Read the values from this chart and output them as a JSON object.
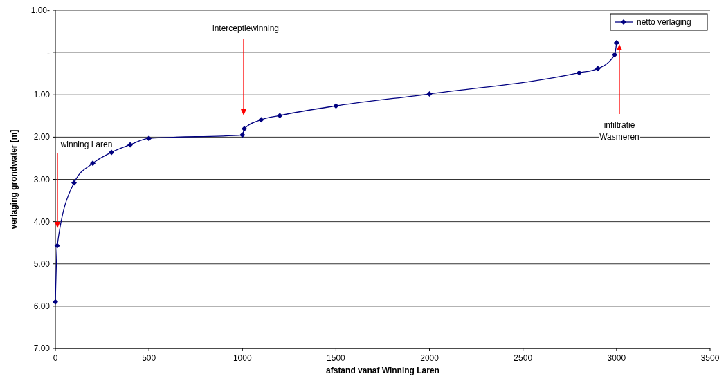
{
  "chart_data": {
    "type": "line",
    "xlabel": "afstand vanaf Winning Laren",
    "ylabel": "verlaging grondwater [m]",
    "xlim": [
      0,
      3500
    ],
    "xticks": [
      0,
      500,
      1000,
      1500,
      2000,
      2500,
      3000,
      3500
    ],
    "ylim": [
      7,
      -1
    ],
    "yticks": [
      {
        "value": -1,
        "label": "1.00-"
      },
      {
        "value": 0,
        "label": "-"
      },
      {
        "value": 1,
        "label": "1.00"
      },
      {
        "value": 2,
        "label": "2.00"
      },
      {
        "value": 3,
        "label": "3.00"
      },
      {
        "value": 4,
        "label": "4.00"
      },
      {
        "value": 5,
        "label": "5.00"
      },
      {
        "value": 6,
        "label": "6.00"
      },
      {
        "value": 7,
        "label": "7.00"
      }
    ],
    "grid": "y",
    "legend": "top right",
    "marker": "diamond",
    "line_style": "solid",
    "series": [
      {
        "name": "netto verlaging",
        "color": "#000080",
        "x": [
          0,
          10,
          100,
          200,
          300,
          400,
          500,
          1000,
          1010,
          1100,
          1200,
          1500,
          2000,
          2800,
          2900,
          2990,
          3000
        ],
        "values": [
          5.9,
          4.57,
          3.08,
          2.62,
          2.36,
          2.18,
          2.03,
          1.95,
          1.8,
          1.59,
          1.49,
          1.26,
          0.98,
          0.48,
          0.38,
          0.05,
          -0.23
        ]
      }
    ],
    "annotations": [
      "winning Laren",
      "interceptiewinning",
      "infiltratie Wasmeren"
    ]
  }
}
